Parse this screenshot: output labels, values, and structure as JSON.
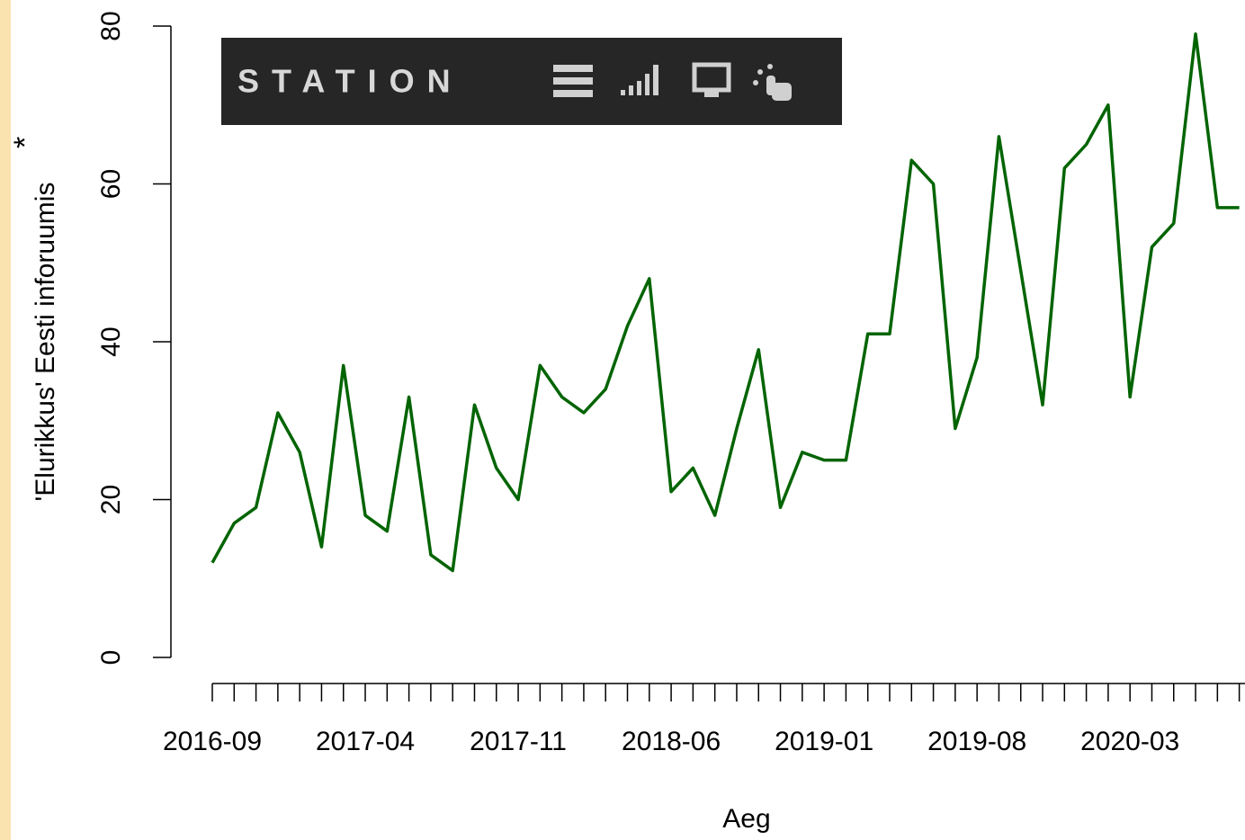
{
  "chart_data": {
    "type": "line",
    "toolbar": {
      "brand": "STATION"
    },
    "y_label": "'Elurikkus' Eesti inforuumis",
    "y_label_mark": "*",
    "x_label": "Aeg",
    "categories": [
      "2016-09",
      "2016-10",
      "2016-11",
      "2016-12",
      "2017-01",
      "2017-02",
      "2017-03",
      "2017-04",
      "2017-05",
      "2017-06",
      "2017-07",
      "2017-08",
      "2017-09",
      "2017-10",
      "2017-11",
      "2017-12",
      "2018-01",
      "2018-02",
      "2018-03",
      "2018-04",
      "2018-05",
      "2018-06",
      "2018-07",
      "2018-08",
      "2018-09",
      "2018-10",
      "2018-11",
      "2018-12",
      "2019-01",
      "2019-02",
      "2019-03",
      "2019-04",
      "2019-05",
      "2019-06",
      "2019-07",
      "2019-08",
      "2019-09",
      "2019-10",
      "2019-11",
      "2019-12",
      "2020-01",
      "2020-02",
      "2020-03",
      "2020-04",
      "2020-05",
      "2020-06",
      "2020-07",
      "2020-08"
    ],
    "series": [
      {
        "name": "Elurikkus",
        "color": "#006400",
        "values": [
          12,
          17,
          19,
          31,
          26,
          14,
          37,
          18,
          16,
          33,
          13,
          11,
          32,
          24,
          20,
          37,
          33,
          31,
          34,
          42,
          48,
          21,
          24,
          18,
          29,
          39,
          19,
          26,
          25,
          25,
          41,
          41,
          63,
          60,
          29,
          38,
          66,
          49,
          32,
          62,
          65,
          70,
          33,
          52,
          55,
          79,
          57,
          57
        ]
      }
    ],
    "ylim": [
      0,
      80
    ],
    "yticks": [
      0,
      20,
      40,
      60,
      80
    ],
    "label_every": 7
  }
}
